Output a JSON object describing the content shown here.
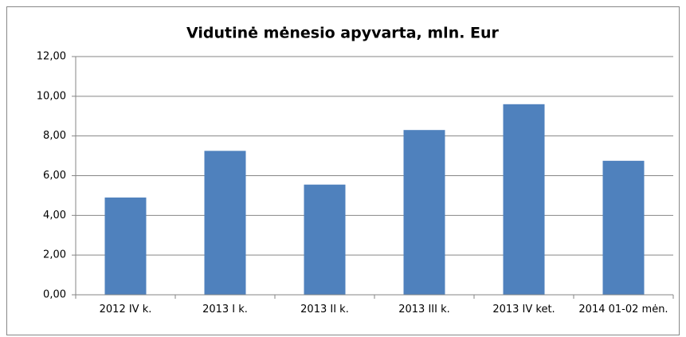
{
  "chart_data": {
    "type": "bar",
    "title": "Vidutinė mėnesio apyvarta, mln. Eur",
    "categories": [
      "2012 IV k.",
      "2013 I k.",
      "2013 II k.",
      "2013 III k.",
      "2013 IV ket.",
      "2014 01-02 mėn."
    ],
    "values": [
      4.9,
      7.25,
      5.55,
      8.3,
      9.6,
      6.75
    ],
    "color": "#4f81bd",
    "ylim": [
      0,
      12
    ],
    "yticks": [
      {
        "value": 0,
        "label": "0,00"
      },
      {
        "value": 2,
        "label": "2,00"
      },
      {
        "value": 4,
        "label": "4,00"
      },
      {
        "value": 6,
        "label": "6,00"
      },
      {
        "value": 8,
        "label": "8,00"
      },
      {
        "value": 10,
        "label": "10,00"
      },
      {
        "value": 12,
        "label": "12,00"
      }
    ],
    "grid": true
  }
}
